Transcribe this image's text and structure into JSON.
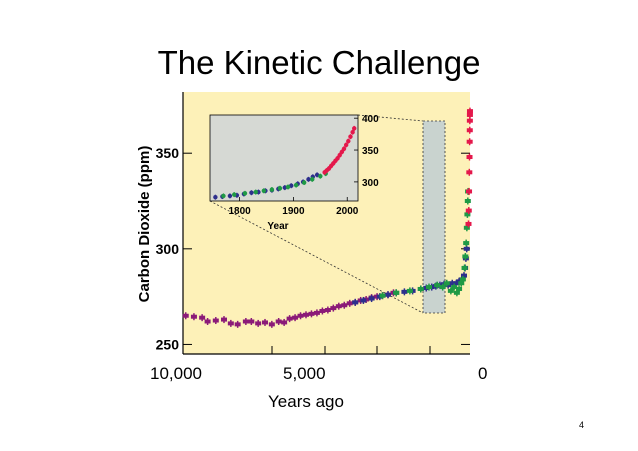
{
  "slide": {
    "title": "The Kinetic Challenge",
    "page_number": "4"
  },
  "colors": {
    "plot_background": "#fdf1b8",
    "inset_background": "#d6d9d4",
    "band_background": "#c9d3cf",
    "purple": "#8b1a78",
    "blue": "#2d2f8c",
    "green": "#1f9a45",
    "red": "#e4184b"
  },
  "chart_data": [
    {
      "type": "scatter",
      "title": "",
      "xlabel": "Years ago",
      "ylabel": "Carbon Dioxide (ppm)",
      "x_reversed": true,
      "xlim": [
        10500,
        0
      ],
      "ylim": [
        245,
        382
      ],
      "x_ticks": [
        {
          "value": 10000,
          "label": "10,000"
        },
        {
          "value": 5000,
          "label": "5,000"
        },
        {
          "value": 0,
          "label": "0"
        }
      ],
      "y_ticks": [
        {
          "value": 250,
          "label": "250"
        },
        {
          "value": 300,
          "label": "300"
        },
        {
          "value": 350,
          "label": "350"
        }
      ],
      "series": [
        {
          "color": "purple",
          "points": [
            [
              10400,
              265
            ],
            [
              10100,
              264.5
            ],
            [
              9800,
              264
            ],
            [
              9600,
              262
            ],
            [
              9300,
              262.5
            ],
            [
              9000,
              263
            ],
            [
              8750,
              261
            ],
            [
              8500,
              260.5
            ],
            [
              8200,
              262
            ],
            [
              8000,
              262
            ],
            [
              7750,
              261
            ],
            [
              7500,
              261.5
            ],
            [
              7250,
              260.5
            ],
            [
              7000,
              262
            ],
            [
              6800,
              261.5
            ],
            [
              6600,
              263.5
            ],
            [
              6400,
              264
            ],
            [
              6200,
              265
            ],
            [
              6000,
              265.5
            ],
            [
              5800,
              266
            ],
            [
              5600,
              266.5
            ],
            [
              5400,
              267.5
            ],
            [
              5200,
              268
            ],
            [
              5000,
              269
            ],
            [
              4800,
              270
            ],
            [
              4600,
              270.5
            ],
            [
              4400,
              271.5
            ],
            [
              4200,
              272
            ],
            [
              4000,
              273
            ],
            [
              3800,
              273.5
            ],
            [
              3600,
              274.5
            ],
            [
              3400,
              275
            ],
            [
              3200,
              275.5
            ],
            [
              3000,
              276
            ],
            [
              2800,
              277
            ]
          ]
        },
        {
          "color": "blue",
          "points": [
            [
              4200,
              272
            ],
            [
              3900,
              273
            ],
            [
              3600,
              274
            ],
            [
              3300,
              275
            ],
            [
              3000,
              276
            ],
            [
              2700,
              277
            ],
            [
              2400,
              277.5
            ],
            [
              2100,
              278
            ],
            [
              1800,
              279
            ],
            [
              1600,
              279.5
            ],
            [
              1400,
              280
            ],
            [
              1250,
              280.5
            ],
            [
              1100,
              281
            ],
            [
              950,
              281.5
            ],
            [
              800,
              281
            ],
            [
              650,
              282
            ],
            [
              500,
              282
            ],
            [
              400,
              283
            ],
            [
              300,
              284
            ],
            [
              220,
              286
            ],
            [
              180,
              290
            ],
            [
              150,
              295
            ],
            [
              120,
              300
            ]
          ]
        },
        {
          "color": "green",
          "points": [
            [
              3200,
              275.5
            ],
            [
              2700,
              277
            ],
            [
              2200,
              278
            ],
            [
              1800,
              279
            ],
            [
              1500,
              280
            ],
            [
              1200,
              281
            ],
            [
              1000,
              280
            ],
            [
              850,
              282
            ],
            [
              700,
              278
            ],
            [
              580,
              280
            ],
            [
              480,
              277
            ],
            [
              400,
              279
            ],
            [
              320,
              282
            ],
            [
              260,
              284
            ],
            [
              200,
              290
            ],
            [
              170,
              296
            ],
            [
              140,
              303
            ],
            [
              115,
              311
            ],
            [
              95,
              318
            ],
            [
              80,
              325
            ],
            [
              70,
              330
            ]
          ]
        },
        {
          "color": "red",
          "points": [
            [
              55,
              313
            ],
            [
              45,
              320
            ],
            [
              35,
              330
            ],
            [
              25,
              340
            ],
            [
              18,
              348
            ],
            [
              12,
              356
            ],
            [
              8,
              362
            ],
            [
              5,
              367
            ],
            [
              3,
              370
            ],
            [
              1,
              372
            ]
          ]
        }
      ]
    },
    {
      "type": "scatter",
      "title": "",
      "xlabel": "Year",
      "ylabel": "",
      "xlim": [
        1745,
        2020
      ],
      "ylim": [
        270,
        405
      ],
      "x_ticks": [
        {
          "value": 1800,
          "label": "1800"
        },
        {
          "value": 1900,
          "label": "1900"
        },
        {
          "value": 2000,
          "label": "2000"
        }
      ],
      "y_ticks": [
        {
          "value": 300,
          "label": "300"
        },
        {
          "value": 350,
          "label": "350"
        },
        {
          "value": 400,
          "label": "400"
        }
      ],
      "series": [
        {
          "color": "blue",
          "points": [
            [
              1755,
              276
            ],
            [
              1768,
              277
            ],
            [
              1782,
              278
            ],
            [
              1795,
              279
            ],
            [
              1808,
              281
            ],
            [
              1822,
              283
            ],
            [
              1835,
              284
            ],
            [
              1848,
              286
            ],
            [
              1860,
              287
            ],
            [
              1872,
              289
            ],
            [
              1884,
              291
            ],
            [
              1896,
              294
            ],
            [
              1908,
              297
            ],
            [
              1918,
              300
            ],
            [
              1928,
              304
            ],
            [
              1936,
              308
            ],
            [
              1944,
              311
            ]
          ]
        },
        {
          "color": "green",
          "points": [
            [
              1770,
              278
            ],
            [
              1790,
              280
            ],
            [
              1810,
              282
            ],
            [
              1830,
              284
            ],
            [
              1845,
              286
            ],
            [
              1860,
              288
            ],
            [
              1875,
              290
            ],
            [
              1890,
              292
            ],
            [
              1905,
              295
            ],
            [
              1920,
              299
            ],
            [
              1935,
              304
            ],
            [
              1950,
              309
            ],
            [
              1960,
              313
            ]
          ]
        },
        {
          "color": "red",
          "points": [
            [
              1958,
              315
            ],
            [
              1962,
              318
            ],
            [
              1966,
              321
            ],
            [
              1970,
              325
            ],
            [
              1974,
              329
            ],
            [
              1978,
              333
            ],
            [
              1982,
              337
            ],
            [
              1986,
              342
            ],
            [
              1990,
              347
            ],
            [
              1994,
              352
            ],
            [
              1998,
              358
            ],
            [
              2002,
              364
            ],
            [
              2006,
              371
            ],
            [
              2010,
              378
            ],
            [
              2013,
              384
            ]
          ]
        }
      ]
    }
  ]
}
